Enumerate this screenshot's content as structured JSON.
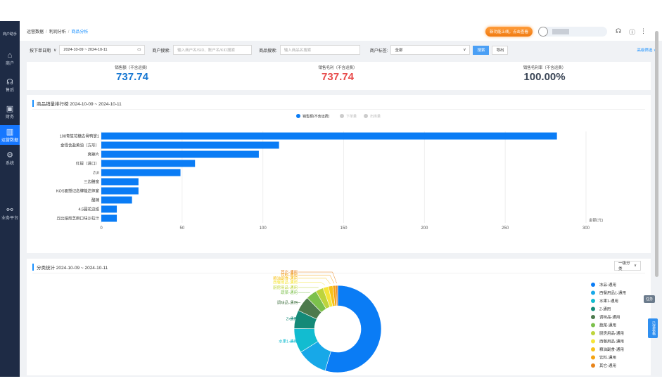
{
  "sidebar": {
    "logo": "商户助手",
    "items": [
      {
        "label": "商户",
        "icon": "store-icon"
      },
      {
        "label": "售后",
        "icon": "headset-icon"
      },
      {
        "label": "财务",
        "icon": "finance-icon"
      },
      {
        "label": "运营数据",
        "icon": "bar-chart-icon",
        "active": true
      },
      {
        "label": "系统",
        "icon": "gear-icon"
      },
      {
        "label": "业务平台",
        "icon": "network-icon"
      }
    ]
  },
  "breadcrumb": [
    "运营数据",
    "利润分析",
    "商品分析"
  ],
  "header": {
    "promo": "新功能上线，点击查看"
  },
  "filters": {
    "date_type": "按下单日期",
    "date_range": "2024-10-09 ~ 2024-10-11",
    "merchant_label": "商户搜索:",
    "merchant_placeholder": "输入商户名/SID、账户名/KID搜索",
    "goods_label": "商品搜索:",
    "goods_placeholder": "输入商品名搜索",
    "tag_label": "商户标签:",
    "tag_value": "全部",
    "search": "搜索",
    "export": "导出",
    "advanced": "高级筛选"
  },
  "kpis": [
    {
      "title": "销售额（不含运费）",
      "value": "737.74",
      "color": "#1677d2"
    },
    {
      "title": "销售毛利（不含运费）",
      "value": "737.74",
      "color": "#e84c4c"
    },
    {
      "title": "销售毛利率（不含运费）",
      "value": "100.00%",
      "color": "#3a4556"
    }
  ],
  "rank": {
    "title": "商品销量排行榜 2024-10-09 ~ 2024-10-11"
  },
  "chart_data": [
    {
      "type": "bar",
      "orientation": "horizontal",
      "legend": [
        "销售额(不含运费)",
        "下单量",
        "出库量"
      ],
      "legend_active": [
        true,
        false,
        false
      ],
      "legend_placement": "top",
      "categories": [
        "108青笙花糖去骨鸭掌1",
        "金怪含盐黄油（方形）",
        "爽辣片",
        "红提（进口）",
        "ZUI",
        "三边膳宽",
        "KOS面授记念牌能达师家",
        "酸辣",
        "4.5圆花边纸",
        "丘比焙煎芝麻口味沙拉汁"
      ],
      "values": [
        282,
        110,
        97.5,
        58,
        49,
        23,
        23,
        19,
        9.6,
        9.6
      ],
      "xlim": [
        0,
        300
      ],
      "xticks": [
        0,
        50,
        100,
        150,
        200,
        250,
        300
      ],
      "xlabel": "金额(元)",
      "color": "#0a7cf5",
      "grid": true
    },
    {
      "type": "pie",
      "donut": true,
      "title": "分类统计 2024-10-09 ~ 2024-10-11",
      "categories": [
        "冻品-通用",
        "西餐用品1-通用",
        "水果1-通用",
        "Z-通用",
        "调味品-通用",
        "蔬菜-通用",
        "厨房用品-通用",
        "西餐用品-通用",
        "粮油副食-通用",
        "饮料-通用",
        "其它-通用"
      ],
      "values": [
        48,
        10,
        8,
        6,
        5,
        3.5,
        2.5,
        1.8,
        1.4,
        1,
        0.6
      ],
      "colors": [
        "#0a7cf5",
        "#17a8e8",
        "#12bcd0",
        "#148a78",
        "#4d7a4d",
        "#7cc04c",
        "#bed43c",
        "#f5e53a",
        "#f7c21a",
        "#f5a312",
        "#e8841a"
      ],
      "legend_placement": "right"
    }
  ],
  "cat": {
    "dropdown": "一级分类"
  },
  "floats": {
    "a": "任务",
    "b": "已读表格"
  }
}
